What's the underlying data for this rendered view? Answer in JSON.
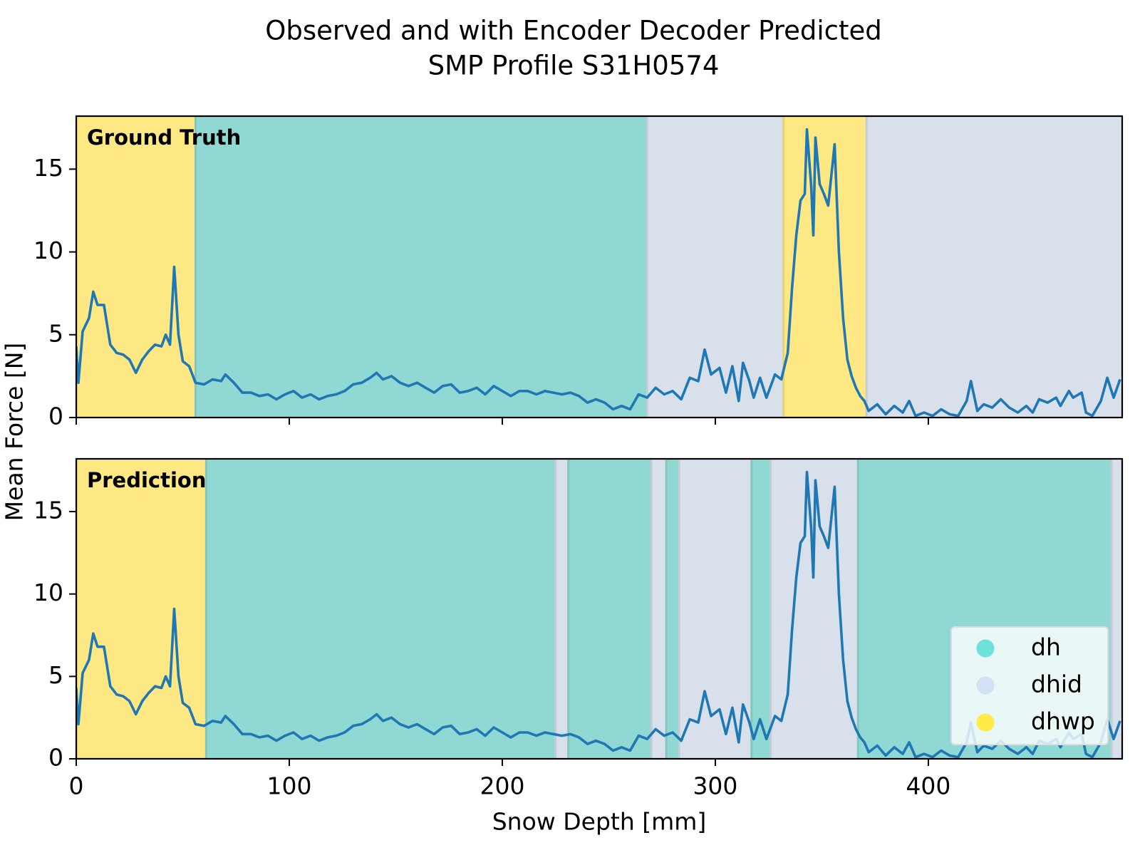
{
  "chart_data": {
    "type": "line",
    "title": [
      "Observed and with Encoder Decoder Predicted",
      "SMP Profile S31H0574"
    ],
    "xlabel": "Snow Depth [mm]",
    "ylabel": "Mean Force [N]",
    "xlim": [
      0,
      491
    ],
    "xticks": [
      0,
      100,
      200,
      300,
      400
    ],
    "ylim": [
      0,
      18.2
    ],
    "yticks": [
      0,
      5,
      10,
      15
    ],
    "line_color": "#1f77b4",
    "classes": [
      {
        "name": "dh",
        "color": "#90d8d3"
      },
      {
        "name": "dhid",
        "color": "#d8e0ec"
      },
      {
        "name": "dhwp",
        "color": "#fde883"
      }
    ],
    "legend": "lower right",
    "x": [
      0,
      1,
      3,
      6,
      8,
      10,
      13,
      16,
      19,
      22,
      25,
      28,
      31,
      34,
      37,
      40,
      42,
      44,
      46,
      48,
      50,
      53,
      56,
      60,
      64,
      68,
      70,
      74,
      78,
      82,
      86,
      90,
      94,
      98,
      102,
      106,
      110,
      114,
      118,
      122,
      126,
      130,
      134,
      138,
      141,
      144,
      148,
      152,
      156,
      160,
      164,
      168,
      172,
      176,
      180,
      184,
      188,
      192,
      196,
      200,
      204,
      208,
      212,
      216,
      220,
      224,
      228,
      232,
      236,
      240,
      244,
      248,
      252,
      256,
      260,
      264,
      268,
      272,
      276,
      280,
      284,
      288,
      292,
      295,
      298,
      302,
      305,
      308,
      311,
      313,
      316,
      318,
      321,
      324,
      328,
      331,
      334,
      336,
      338,
      340,
      342,
      343,
      345,
      346,
      347,
      349,
      351,
      353,
      356,
      358,
      360,
      362,
      364,
      366,
      368,
      370,
      372,
      376,
      380,
      384,
      388,
      391,
      394,
      398,
      402,
      406,
      410,
      414,
      418,
      420,
      423,
      426,
      430,
      434,
      438,
      442,
      446,
      449,
      452,
      456,
      460,
      462,
      466,
      468,
      472,
      474,
      477,
      481,
      484,
      487,
      490
    ],
    "values": [
      4.3,
      2.1,
      5.2,
      6.0,
      7.6,
      6.8,
      6.8,
      4.4,
      3.9,
      3.8,
      3.5,
      2.7,
      3.5,
      4.0,
      4.4,
      4.3,
      5.0,
      4.4,
      9.1,
      5.0,
      3.4,
      3.1,
      2.1,
      2.0,
      2.3,
      2.2,
      2.6,
      2.1,
      1.5,
      1.5,
      1.3,
      1.4,
      1.1,
      1.4,
      1.6,
      1.2,
      1.4,
      1.1,
      1.3,
      1.4,
      1.6,
      2.0,
      2.1,
      2.4,
      2.7,
      2.3,
      2.5,
      2.1,
      1.9,
      2.1,
      1.8,
      1.5,
      1.9,
      2.0,
      1.5,
      1.6,
      1.8,
      1.4,
      1.9,
      1.6,
      1.3,
      1.6,
      1.6,
      1.4,
      1.6,
      1.5,
      1.4,
      1.5,
      1.3,
      0.9,
      1.1,
      0.9,
      0.5,
      0.7,
      0.5,
      1.4,
      1.2,
      1.8,
      1.4,
      1.6,
      1.1,
      2.4,
      2.2,
      4.1,
      2.6,
      3.0,
      1.5,
      3.1,
      1.0,
      3.3,
      2.2,
      1.2,
      2.4,
      1.2,
      2.6,
      2.3,
      3.9,
      7.8,
      11.0,
      13.1,
      13.5,
      17.4,
      14.0,
      11.0,
      16.9,
      14.1,
      13.5,
      12.8,
      16.5,
      10.0,
      6.0,
      3.5,
      2.5,
      1.8,
      1.3,
      1.0,
      0.4,
      0.8,
      0.2,
      0.7,
      0.3,
      1.0,
      0.1,
      0.3,
      0.1,
      0.5,
      0.2,
      0.1,
      1.0,
      2.2,
      0.4,
      0.8,
      0.6,
      1.1,
      0.6,
      0.3,
      0.7,
      0.3,
      1.1,
      0.9,
      1.2,
      0.7,
      1.6,
      1.2,
      1.5,
      0.3,
      0.1,
      1.0,
      2.4,
      1.2,
      2.3
    ],
    "panels": [
      {
        "label": "Ground Truth",
        "regions": [
          {
            "class": "dhwp",
            "start": 0,
            "end": 56
          },
          {
            "class": "dh",
            "start": 56,
            "end": 268
          },
          {
            "class": "dhid",
            "start": 268,
            "end": 332
          },
          {
            "class": "dhwp",
            "start": 332,
            "end": 371
          },
          {
            "class": "dhid",
            "start": 371,
            "end": 491
          }
        ]
      },
      {
        "label": "Prediction",
        "regions": [
          {
            "class": "dhwp",
            "start": 0,
            "end": 61
          },
          {
            "class": "dh",
            "start": 61,
            "end": 225
          },
          {
            "class": "dhid",
            "start": 225,
            "end": 231
          },
          {
            "class": "dh",
            "start": 231,
            "end": 270
          },
          {
            "class": "dhid",
            "start": 270,
            "end": 277
          },
          {
            "class": "dh",
            "start": 277,
            "end": 283
          },
          {
            "class": "dhid",
            "start": 283,
            "end": 317
          },
          {
            "class": "dh",
            "start": 317,
            "end": 326
          },
          {
            "class": "dhid",
            "start": 326,
            "end": 367
          },
          {
            "class": "dh",
            "start": 367,
            "end": 486
          },
          {
            "class": "dhid",
            "start": 486,
            "end": 491
          }
        ]
      }
    ]
  }
}
